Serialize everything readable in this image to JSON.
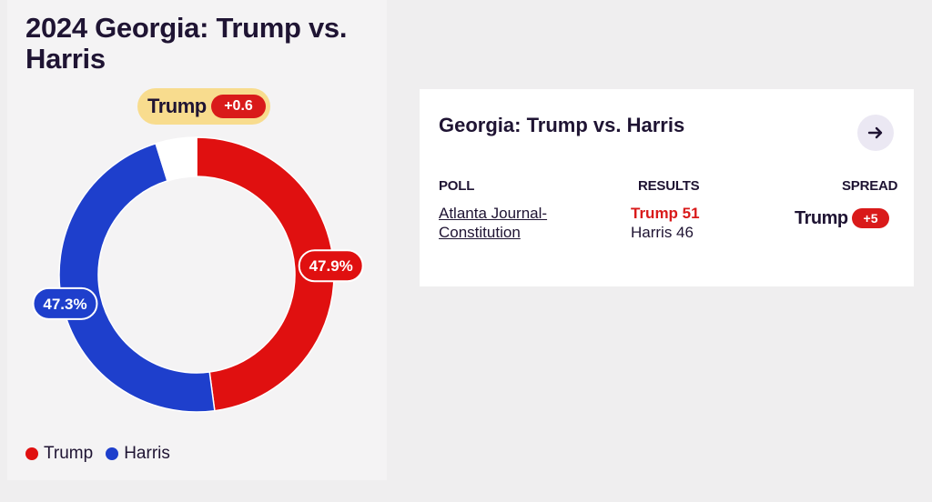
{
  "title": "2024 Georgia: Trump vs. Harris",
  "leader": {
    "name": "Trump",
    "margin": "+0.6"
  },
  "chart_data": {
    "type": "pie",
    "title": "2024 Georgia: Trump vs. Harris",
    "donut": true,
    "slices": [
      {
        "name": "Trump",
        "value": 47.9,
        "label": "47.9%",
        "color": "#e01010"
      },
      {
        "name": "Harris",
        "value": 47.3,
        "label": "47.3%",
        "color": "#1e3fcc"
      },
      {
        "name": "",
        "value": 4.8,
        "color": "#ffffff"
      }
    ],
    "legend": [
      "Trump",
      "Harris"
    ],
    "legend_position": "bottom-left"
  },
  "legend": [
    {
      "label": "Trump",
      "color": "#e01010"
    },
    {
      "label": "Harris",
      "color": "#1e3fcc"
    }
  ],
  "card": {
    "title": "Georgia: Trump vs. Harris",
    "arrow_icon": "arrow-right-icon",
    "headers": {
      "poll": "POLL",
      "results": "RESULTS",
      "spread": "SPREAD"
    },
    "row": {
      "poll": "Atlanta Journal-Constitution",
      "trump_result": "Trump 51",
      "harris_result": "Harris 46",
      "spread_name": "Trump",
      "spread_value": "+5"
    }
  }
}
